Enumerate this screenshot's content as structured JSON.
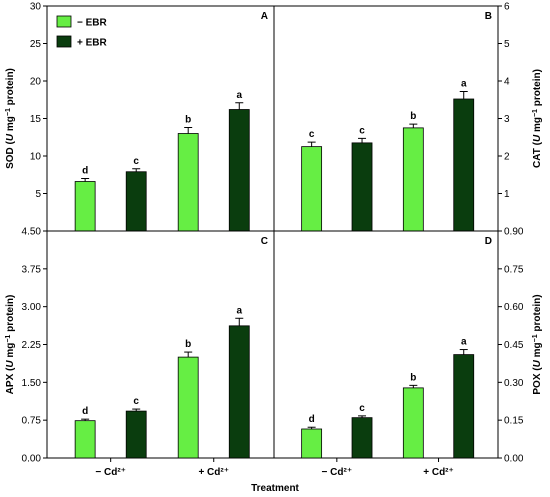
{
  "chart_data": {
    "type": "bar",
    "xlabel": "Treatment",
    "categories": [
      "− Cd²⁺",
      "+ Cd²⁺"
    ],
    "legend": {
      "placement": "top-left",
      "entries": [
        {
          "name": "− EBR",
          "color": "#66ee44"
        },
        {
          "name": "+ EBR",
          "color": "#0a3d0e"
        }
      ]
    },
    "panels": [
      {
        "letter": "A",
        "ylabel_main": "SOD (",
        "ylabel_unit": "U",
        "ylabel_rest": " mg",
        "ylabel_sup": "−1",
        "ylabel_end": " protein)",
        "ylim": [
          0,
          30
        ],
        "ticks": [
          {
            "v": 5,
            "t": "5"
          },
          {
            "v": 10,
            "t": "10"
          },
          {
            "v": 15,
            "t": "15"
          },
          {
            "v": 20,
            "t": "20"
          },
          {
            "v": 25,
            "t": "25"
          },
          {
            "v": 30,
            "t": "30"
          }
        ],
        "series": [
          {
            "name": "− EBR",
            "values": [
              6.6,
              13.0
            ],
            "errors": [
              0.4,
              0.8
            ],
            "letters": [
              "d",
              "b"
            ]
          },
          {
            "name": "+ EBR",
            "values": [
              7.9,
              16.2
            ],
            "errors": [
              0.4,
              0.9
            ],
            "letters": [
              "c",
              "a"
            ]
          }
        ]
      },
      {
        "letter": "B",
        "ylabel_main": "CAT (",
        "ylabel_unit": "U",
        "ylabel_rest": " mg",
        "ylabel_sup": "−1",
        "ylabel_end": " protein)",
        "ylim": [
          0,
          6
        ],
        "ticks": [
          {
            "v": 1,
            "t": "1"
          },
          {
            "v": 2,
            "t": "2"
          },
          {
            "v": 3,
            "t": "3"
          },
          {
            "v": 4,
            "t": "4"
          },
          {
            "v": 5,
            "t": "5"
          },
          {
            "v": 6,
            "t": "6"
          }
        ],
        "series": [
          {
            "name": "− EBR",
            "values": [
              2.25,
              2.75
            ],
            "errors": [
              0.12,
              0.1
            ],
            "letters": [
              "c",
              "b"
            ]
          },
          {
            "name": "+ EBR",
            "values": [
              2.35,
              3.52
            ],
            "errors": [
              0.12,
              0.2
            ],
            "letters": [
              "c",
              "a"
            ]
          }
        ]
      },
      {
        "letter": "C",
        "ylabel_main": "APX (",
        "ylabel_unit": "U",
        "ylabel_rest": " mg",
        "ylabel_sup": "−1",
        "ylabel_end": " protein)",
        "ylim": [
          0,
          4.5
        ],
        "ticks": [
          {
            "v": 0,
            "t": "0.00"
          },
          {
            "v": 0.75,
            "t": "0.75"
          },
          {
            "v": 1.5,
            "t": "1.50"
          },
          {
            "v": 2.25,
            "t": "2.25"
          },
          {
            "v": 3.0,
            "t": "3.00"
          },
          {
            "v": 3.75,
            "t": "3.75"
          },
          {
            "v": 4.5,
            "t": "4.50"
          }
        ],
        "series": [
          {
            "name": "− EBR",
            "values": [
              0.74,
              2.0
            ],
            "errors": [
              0.03,
              0.1
            ],
            "letters": [
              "d",
              "b"
            ]
          },
          {
            "name": "+ EBR",
            "values": [
              0.93,
              2.62
            ],
            "errors": [
              0.04,
              0.15
            ],
            "letters": [
              "c",
              "a"
            ]
          }
        ]
      },
      {
        "letter": "D",
        "ylabel_main": "POX (",
        "ylabel_unit": "U",
        "ylabel_rest": " mg",
        "ylabel_sup": "−1",
        "ylabel_end": " protein)",
        "ylim": [
          0,
          0.9
        ],
        "ticks": [
          {
            "v": 0,
            "t": "0.00"
          },
          {
            "v": 0.15,
            "t": "0.15"
          },
          {
            "v": 0.3,
            "t": "0.30"
          },
          {
            "v": 0.45,
            "t": "0.45"
          },
          {
            "v": 0.6,
            "t": "0.60"
          },
          {
            "v": 0.75,
            "t": "0.75"
          },
          {
            "v": 0.9,
            "t": "0.90"
          }
        ],
        "series": [
          {
            "name": "− EBR",
            "values": [
              0.115,
              0.278
            ],
            "errors": [
              0.007,
              0.01
            ],
            "letters": [
              "d",
              "b"
            ]
          },
          {
            "name": "+ EBR",
            "values": [
              0.16,
              0.41
            ],
            "errors": [
              0.007,
              0.02
            ],
            "letters": [
              "c",
              "a"
            ]
          }
        ]
      }
    ]
  }
}
